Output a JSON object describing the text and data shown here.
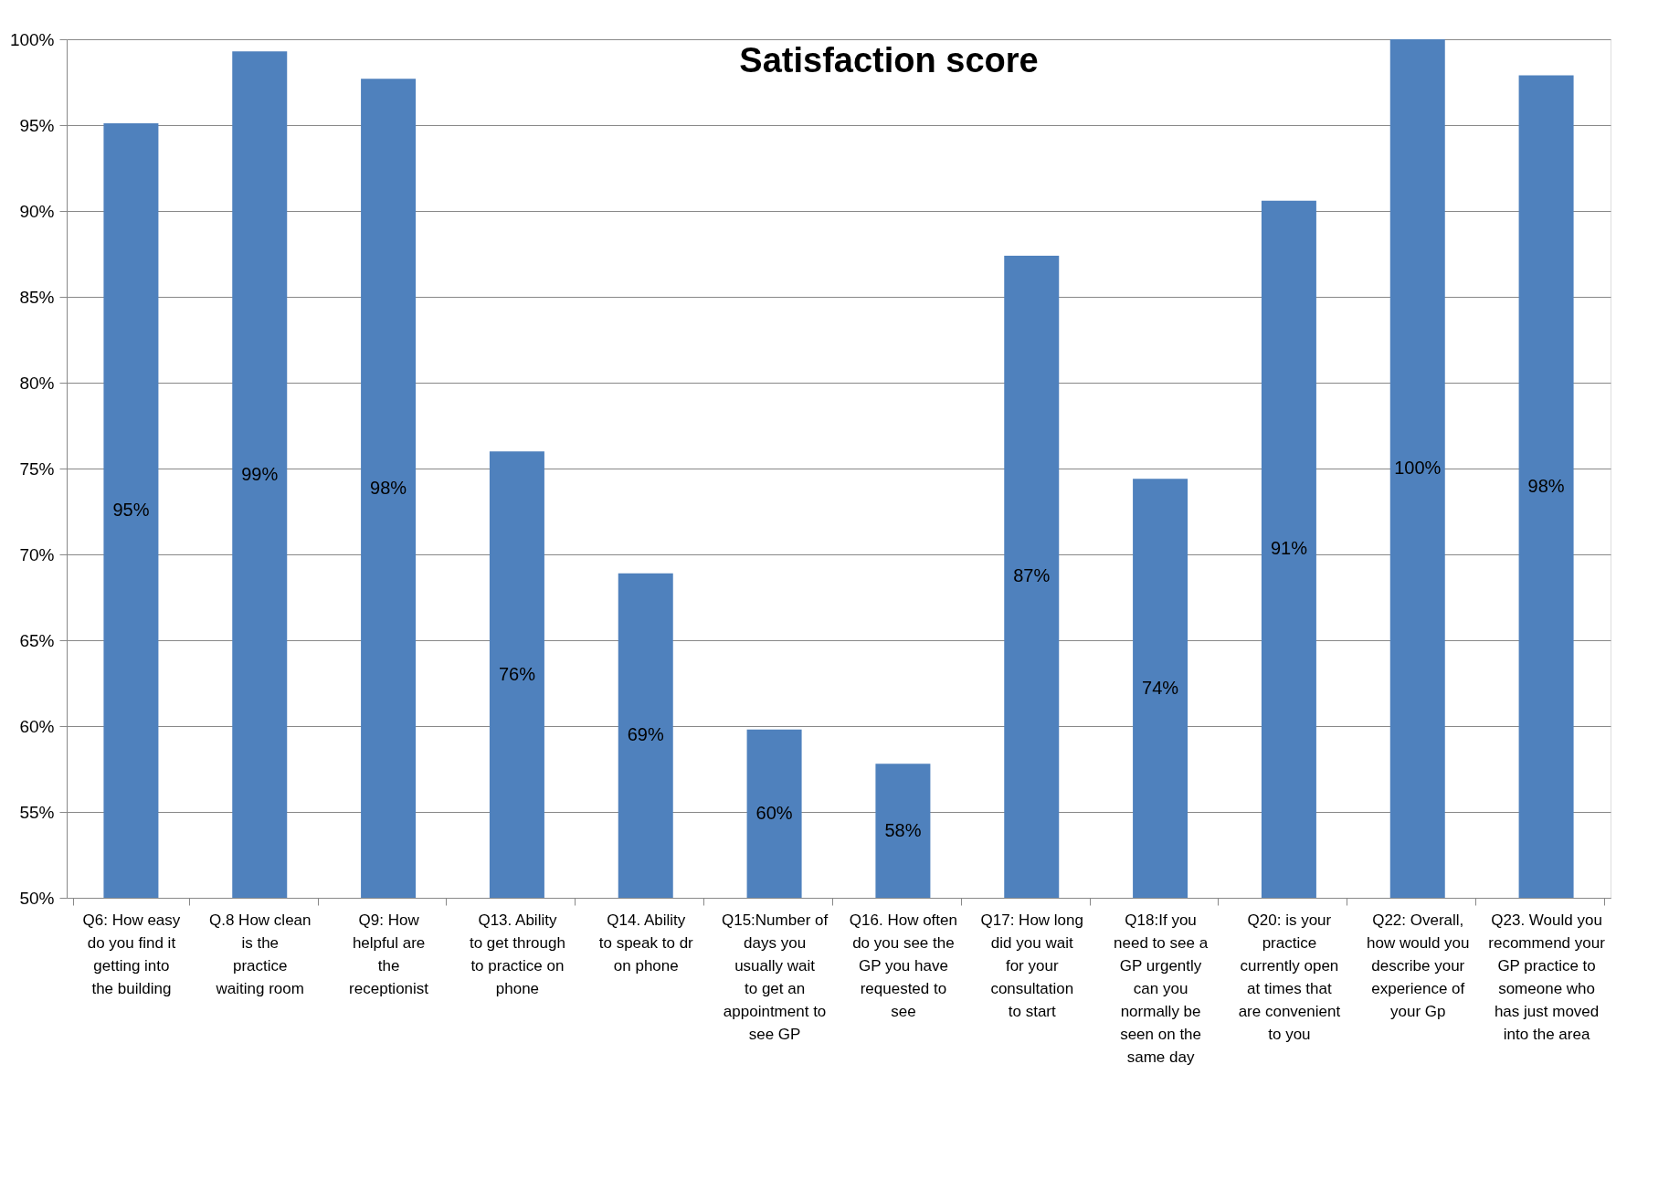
{
  "chart_data": {
    "type": "bar",
    "title": "Satisfaction score",
    "categories": [
      "Q6: How easy do you find it getting into the building",
      "Q.8 How clean is the practice waiting room",
      "Q9: How helpful are the receptionist",
      "Q13. Ability to get through to practice on phone",
      "Q14. Ability to speak to dr on phone",
      "Q15:Number of days you usually wait to get an appointment to see GP",
      "Q16. How often do you see the GP you have requested to see",
      "Q17: How long did you wait for your consultation to start",
      "Q18:If you need to see a GP urgently can you normally be seen on the same day",
      "Q20: is your practice currently open at times that are convenient to you",
      "Q22: Overall, how would you describe your experience of your Gp",
      "Q23. Would you recommend your GP practice to someone who has just moved into the area"
    ],
    "values": [
      95.1,
      99.3,
      97.7,
      76.0,
      68.9,
      59.8,
      57.8,
      87.4,
      74.4,
      90.6,
      100,
      97.9
    ],
    "value_labels": [
      "95%",
      "99%",
      "98%",
      "76%",
      "69%",
      "60%",
      "58%",
      "87%",
      "74%",
      "91%",
      "100%",
      "98%"
    ],
    "color": "#4f81bd",
    "ylim": [
      50,
      100
    ],
    "yticks": [
      {
        "value": 50,
        "label": "50%"
      },
      {
        "value": 55,
        "label": "55%"
      },
      {
        "value": 60,
        "label": "60%"
      },
      {
        "value": 65,
        "label": "65%"
      },
      {
        "value": 70,
        "label": "70%"
      },
      {
        "value": 75,
        "label": "75%"
      },
      {
        "value": 80,
        "label": "80%"
      },
      {
        "value": 85,
        "label": "85%"
      },
      {
        "value": 90,
        "label": "90%"
      },
      {
        "value": 95,
        "label": "95%"
      },
      {
        "value": 100,
        "label": "100%"
      }
    ],
    "grid": "y"
  }
}
